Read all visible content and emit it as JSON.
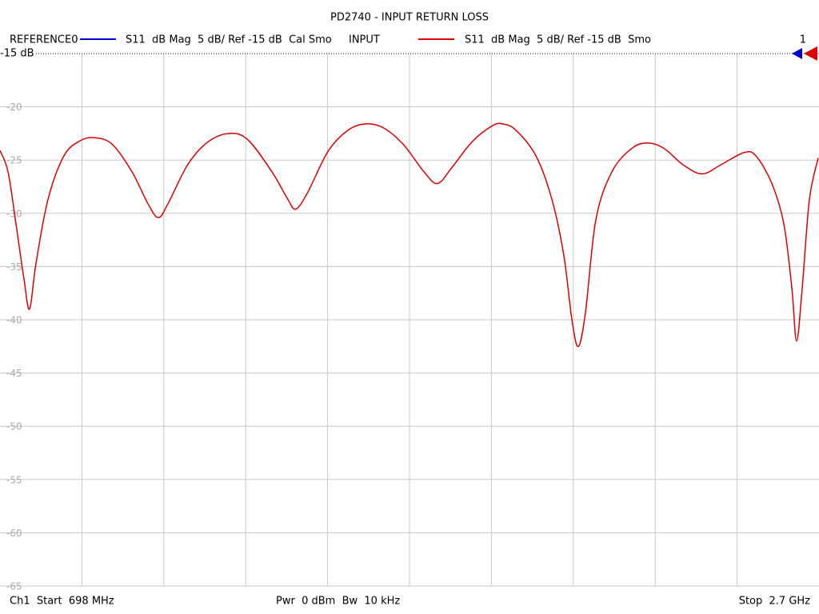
{
  "chart_data": {
    "type": "line",
    "title": "PD2740 - INPUT RETURN LOSS",
    "reference": {
      "name": "REFERENCE0",
      "color": "#0000cc",
      "description": "S11  dB Mag  5 dB/ Ref -15 dB  Cal Smo"
    },
    "series": [
      {
        "name": "INPUT",
        "description": "S11  dB Mag  5 dB/ Ref -15 dB  Smo",
        "color": "#dd0000",
        "x": [
          698,
          717.6,
          737.1,
          756.7,
          770.3,
          786.0,
          815.3,
          854.4,
          893.5,
          928.7,
          971.7,
          1020.6,
          1059.7,
          1085.1,
          1108.6,
          1157.4,
          1206.3,
          1259.1,
          1304.1,
          1362.7,
          1401.8,
          1421.4,
          1450.7,
          1499.6,
          1548.5,
          1593.5,
          1636.5,
          1685.4,
          1734.3,
          1767.5,
          1802.7,
          1851.6,
          1900.5,
          1925.9,
          1959.2,
          2008.0,
          2047.1,
          2076.4,
          2096.0,
          2111.6,
          2129.2,
          2154.6,
          2193.7,
          2242.6,
          2281.7,
          2320.8,
          2369.6,
          2414.6,
          2457.6,
          2516.3,
          2545.6,
          2584.7,
          2614.0,
          2633.6,
          2645.3,
          2659.0,
          2676.6,
          2698.0
        ],
        "values": [
          -24.1,
          -26.1,
          -31,
          -36.2,
          -39.0,
          -34.7,
          -28.7,
          -24.6,
          -23.2,
          -22.9,
          -23.5,
          -26.1,
          -29.1,
          -30.4,
          -29.1,
          -25.4,
          -23.3,
          -22.5,
          -23.1,
          -26.1,
          -28.7,
          -29.6,
          -28.0,
          -24.2,
          -22.2,
          -21.6,
          -22.0,
          -23.6,
          -26.1,
          -27.2,
          -25.7,
          -23.3,
          -21.8,
          -21.6,
          -22.2,
          -24.6,
          -28.7,
          -34.0,
          -40.0,
          -42.5,
          -39.3,
          -30.6,
          -26.1,
          -23.9,
          -23.4,
          -23.9,
          -25.5,
          -26.3,
          -25.5,
          -24.3,
          -24.6,
          -27.2,
          -31,
          -37,
          -42.0,
          -37,
          -28.7,
          -24.8
        ]
      }
    ],
    "xlim": [
      698,
      2700
    ],
    "xticks": [
      898.2,
      1098.4,
      1298.6,
      1498.8,
      1699,
      1899.2,
      2099.4,
      2299.6,
      2499.8
    ],
    "ylim": [
      -65,
      -15
    ],
    "yticks": [
      -15,
      -20,
      -25,
      -30,
      -35,
      -40,
      -45,
      -50,
      -55,
      -60,
      -65
    ],
    "grid": true,
    "reference_level_label": "-15 dB",
    "channel_marker": "1",
    "footer": {
      "start": "Ch1  Start  698 MHz",
      "power": "Pwr  0 dBm  Bw  10 kHz",
      "stop": "Stop  2.7 GHz"
    }
  }
}
